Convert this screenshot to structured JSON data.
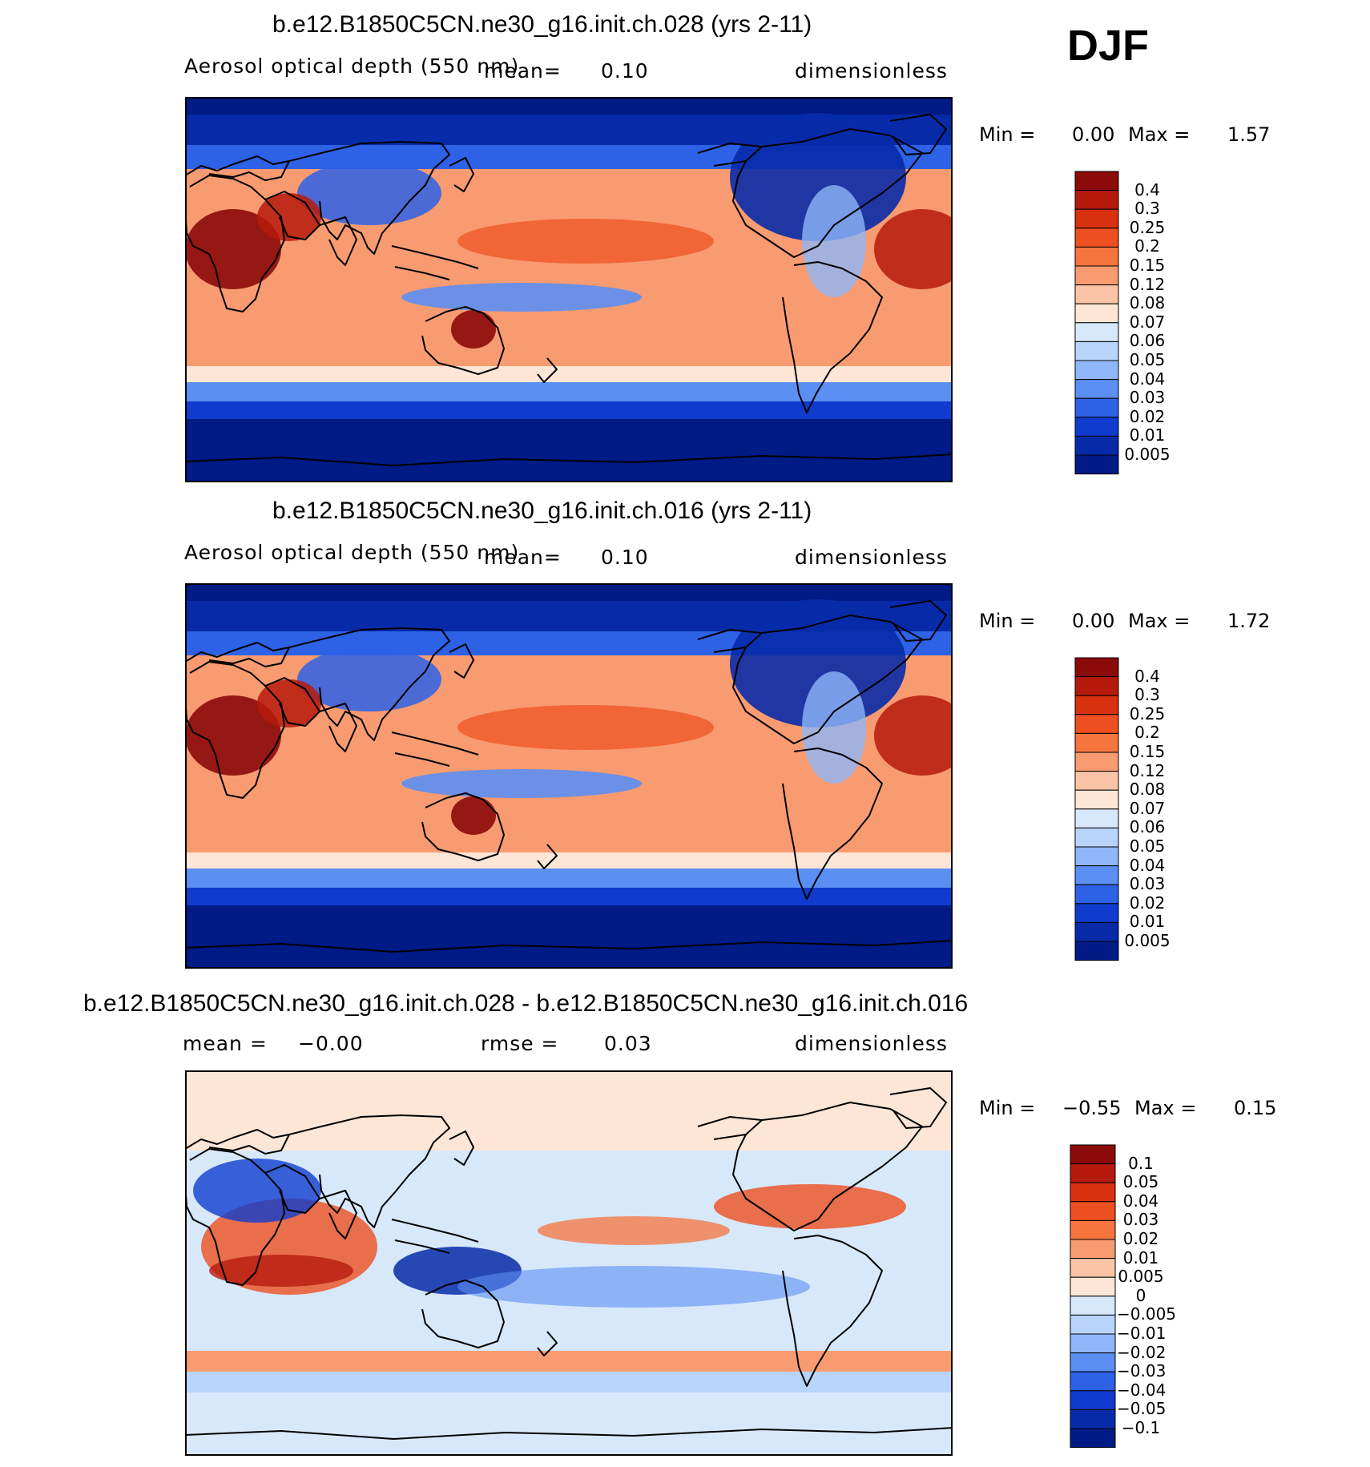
{
  "season": "DJF",
  "panels": [
    {
      "title": "b.e12.B1850C5CN.ne30_g16.init.ch.028 (yrs 2-11)",
      "variable": "Aerosol optical depth (550 nm)",
      "mean_label": "mean=",
      "mean_value": "0.10",
      "units": "dimensionless",
      "min_label": "Min =",
      "min_value": "0.00",
      "max_label": "Max =",
      "max_value": "1.57",
      "colorbar": {
        "labels": [
          "0.4",
          "0.3",
          "0.25",
          "0.2",
          "0.15",
          "0.12",
          "0.08",
          "0.07",
          "0.06",
          "0.05",
          "0.04",
          "0.03",
          "0.02",
          "0.01",
          "0.005"
        ],
        "colors": [
          "#8b0a0a",
          "#b61a0c",
          "#d93010",
          "#ee4f20",
          "#f6753f",
          "#f99b71",
          "#fbc4a6",
          "#fde6d6",
          "#d8e8fb",
          "#b9d4fb",
          "#8fb6f8",
          "#5b8ff3",
          "#2d61e6",
          "#0f3ccf",
          "#072ba8",
          "#001a86"
        ]
      },
      "field_model": "ctrl"
    },
    {
      "title": "b.e12.B1850C5CN.ne30_g16.init.ch.016 (yrs 2-11)",
      "variable": "Aerosol optical depth (550 nm)",
      "mean_label": "mean=",
      "mean_value": "0.10",
      "units": "dimensionless",
      "min_label": "Min =",
      "min_value": "0.00",
      "max_label": "Max =",
      "max_value": "1.72",
      "colorbar": {
        "labels": [
          "0.4",
          "0.3",
          "0.25",
          "0.2",
          "0.15",
          "0.12",
          "0.08",
          "0.07",
          "0.06",
          "0.05",
          "0.04",
          "0.03",
          "0.02",
          "0.01",
          "0.005"
        ],
        "colors": [
          "#8b0a0a",
          "#b61a0c",
          "#d93010",
          "#ee4f20",
          "#f6753f",
          "#f99b71",
          "#fbc4a6",
          "#fde6d6",
          "#d8e8fb",
          "#b9d4fb",
          "#8fb6f8",
          "#5b8ff3",
          "#2d61e6",
          "#0f3ccf",
          "#072ba8",
          "#001a86"
        ]
      },
      "field_model": "ctrl"
    },
    {
      "title": "b.e12.B1850C5CN.ne30_g16.init.ch.028 - b.e12.B1850C5CN.ne30_g16.init.ch.016",
      "mean_label": "mean =",
      "mean_value": "−0.00",
      "rmse_label": "rmse =",
      "rmse_value": "0.03",
      "units": "dimensionless",
      "min_label": "Min =",
      "min_value": "−0.55",
      "max_label": "Max =",
      "max_value": "0.15",
      "colorbar": {
        "labels": [
          "0.1",
          "0.05",
          "0.04",
          "0.03",
          "0.02",
          "0.01",
          "0.005",
          "0",
          "−0.005",
          "−0.01",
          "−0.02",
          "−0.03",
          "−0.04",
          "−0.05",
          "−0.1"
        ],
        "colors": [
          "#8b0a0a",
          "#b61a0c",
          "#d93010",
          "#ee4f20",
          "#f6753f",
          "#f99b71",
          "#fbc4a6",
          "#fde6d6",
          "#d8e8fb",
          "#b9d4fb",
          "#8fb6f8",
          "#5b8ff3",
          "#2d61e6",
          "#0f3ccf",
          "#072ba8",
          "#001a86"
        ]
      },
      "field_model": "diff"
    }
  ]
}
